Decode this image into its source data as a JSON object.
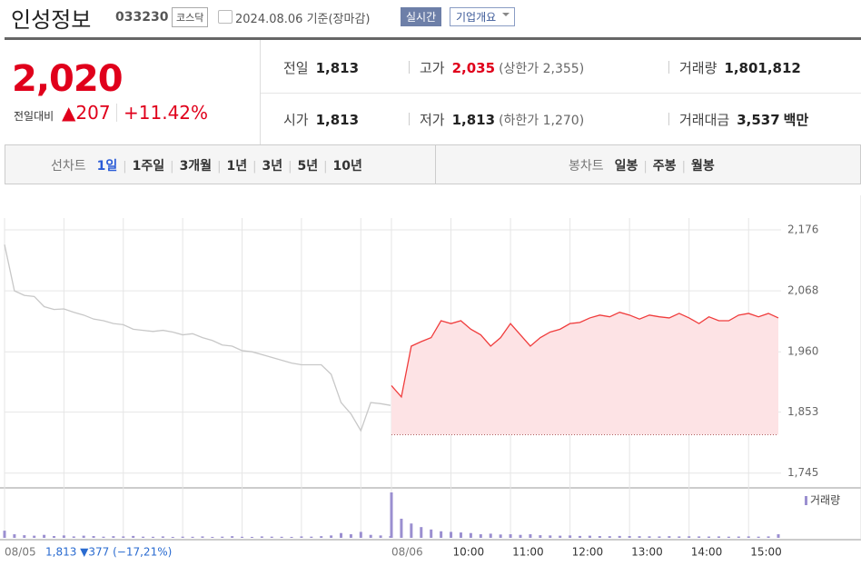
{
  "header": {
    "name": "인성정보",
    "code": "033230",
    "market": "코스닥",
    "date": "2024.08.06 기준(장마감)",
    "realtime": "실시간",
    "company_info": "기업개요"
  },
  "quote": {
    "price": "2,020",
    "change_label": "전일대비",
    "change": "▲207",
    "change_pct": "+11.42%"
  },
  "stats": [
    [
      {
        "label": "전일",
        "value": "1,813"
      },
      {
        "label": "고가",
        "value": "2,035",
        "note": "(상한가 2,355)"
      },
      {
        "label": "거래량",
        "value": "1,801,812"
      }
    ],
    [
      {
        "label": "시가",
        "value": "1,813"
      },
      {
        "label": "저가",
        "value": "1,813",
        "note": "(하한가 1,270)"
      },
      {
        "label": "거래대금",
        "value": "3,537",
        "unit": "백만"
      }
    ]
  ],
  "tabs": {
    "line_label": "선차트",
    "line_periods": [
      "1일",
      "1주일",
      "3개월",
      "1년",
      "3년",
      "5년",
      "10년"
    ],
    "candle_label": "봉차트",
    "candle_periods": [
      "일봉",
      "주봉",
      "월봉"
    ],
    "active": 0
  },
  "chart_data": {
    "type": "line",
    "categories": [
      "08/05",
      null,
      null,
      null,
      null,
      null,
      null,
      null,
      null,
      null,
      null,
      null,
      null,
      null,
      null,
      null,
      null,
      null,
      null,
      null,
      null,
      null,
      null,
      null,
      null,
      null,
      null,
      null,
      null,
      null,
      null,
      null,
      null,
      null,
      null,
      null,
      null,
      null,
      null,
      null,
      "08/06",
      null,
      null,
      null,
      null,
      null,
      "10:00",
      null,
      null,
      null,
      null,
      null,
      "11:00",
      null,
      null,
      null,
      null,
      null,
      "12:00",
      null,
      null,
      null,
      null,
      null,
      "13:00",
      null,
      null,
      null,
      null,
      null,
      "14:00",
      null,
      null,
      null,
      null,
      null,
      "15:00",
      null,
      null,
      null
    ],
    "series": [
      {
        "color": "#c8c8c8",
        "values": [
          2150,
          2068,
          2060,
          2058,
          2040,
          2035,
          2036,
          2030,
          2025,
          2018,
          2015,
          2010,
          2008,
          2000,
          1998,
          1996,
          1998,
          1995,
          1990,
          1992,
          1985,
          1980,
          1972,
          1970,
          1962,
          1960,
          1955,
          1950,
          1945,
          1940,
          1937,
          1937,
          1937,
          1920,
          1870,
          1850,
          1820,
          1870,
          1868,
          1865,
          null,
          null,
          null,
          null,
          null,
          null,
          null,
          null,
          null,
          null,
          null,
          null,
          null,
          null,
          null,
          null,
          null,
          null,
          null,
          null,
          null,
          null,
          null,
          null,
          null,
          null,
          null,
          null,
          null,
          null,
          null,
          null,
          null,
          null,
          null,
          null,
          null,
          null,
          null,
          null
        ]
      },
      {
        "color": "#f03c3c",
        "fill": "#fde3e5",
        "values": [
          null,
          null,
          null,
          null,
          null,
          null,
          null,
          null,
          null,
          null,
          null,
          null,
          null,
          null,
          null,
          null,
          null,
          null,
          null,
          null,
          null,
          null,
          null,
          null,
          null,
          null,
          null,
          null,
          null,
          null,
          null,
          null,
          null,
          null,
          null,
          null,
          null,
          null,
          null,
          null,
          1900,
          1880,
          1970,
          1978,
          1985,
          2015,
          2010,
          2015,
          2000,
          1990,
          1970,
          1985,
          2010,
          1990,
          1970,
          1985,
          1995,
          2000,
          2010,
          2012,
          2020,
          2025,
          2022,
          2030,
          2025,
          2018,
          2025,
          2022,
          2020,
          2028,
          2020,
          2010,
          2022,
          2015,
          2015,
          2025,
          2028,
          2022,
          2028,
          2020
        ]
      },
      {
        "name": "거래량",
        "color": "#9b8fd0",
        "values": [
          60000,
          30000,
          22000,
          18000,
          25000,
          15000,
          20000,
          12000,
          18000,
          15000,
          10000,
          14000,
          12000,
          16000,
          10000,
          9000,
          12000,
          8000,
          10000,
          9000,
          12000,
          8000,
          10000,
          14000,
          9000,
          8000,
          12000,
          10000,
          9000,
          8000,
          12000,
          10000,
          14000,
          20000,
          40000,
          30000,
          50000,
          25000,
          20000,
          15000,
          380000,
          160000,
          120000,
          90000,
          70000,
          55000,
          50000,
          45000,
          40000,
          30000,
          35000,
          28000,
          30000,
          25000,
          30000,
          22000,
          20000,
          18000,
          20000,
          16000,
          18000,
          15000,
          14000,
          16000,
          15000,
          14000,
          13000,
          12000,
          14000,
          12000,
          13000,
          12000,
          11000,
          12000,
          10000,
          11000,
          12000,
          10000,
          12000,
          30000
        ]
      }
    ],
    "base_value": 1813,
    "ylim": [
      1722,
      2197
    ],
    "yticks": [
      {
        "value": 2176,
        "label": "2,176"
      },
      {
        "value": 2068,
        "label": "2,068"
      },
      {
        "value": 1960,
        "label": "1,960"
      },
      {
        "value": 1853,
        "label": "1,853"
      },
      {
        "value": 1745,
        "label": "1,745"
      }
    ],
    "grid": true,
    "footer": "1,813 ▼377 (−17,21%)"
  }
}
